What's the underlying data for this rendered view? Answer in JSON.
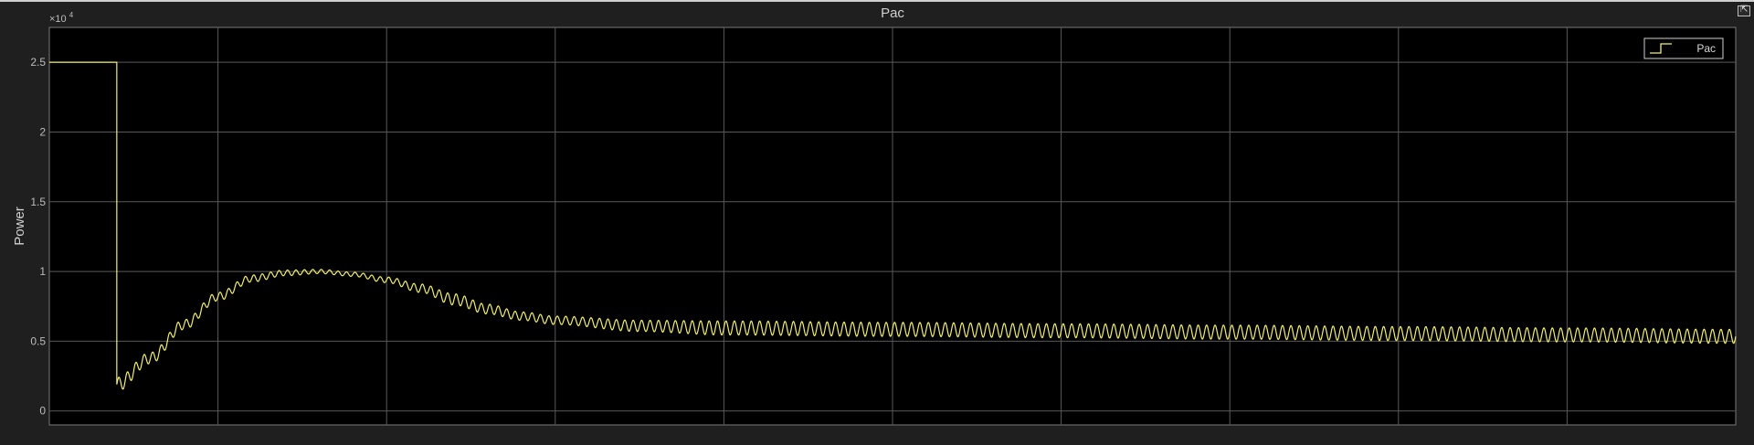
{
  "chart_data": {
    "type": "line",
    "title": "Pac",
    "xlabel": "",
    "ylabel": "Power",
    "y_exponent_label": "×10",
    "y_exponent_power": "4",
    "xlim": [
      0,
      10
    ],
    "ylim": [
      -0.1,
      2.75
    ],
    "y_ticks": [
      0,
      0.5,
      1,
      1.5,
      2,
      2.5
    ],
    "y_tick_labels": [
      "0",
      "0.5",
      "1",
      "1.5",
      "2",
      "2.5"
    ],
    "x_ticks": [
      0,
      1,
      2,
      3,
      4,
      5,
      6,
      7,
      8,
      9,
      10
    ],
    "grid": true,
    "legend_placement": "top-right",
    "series": [
      {
        "name": "Pac",
        "color": "#f2ef6e",
        "step_value": 2.5,
        "step_until": 0.4,
        "drop_to": 0.19,
        "x": [
          0.4,
          0.6,
          0.8,
          1.0,
          1.2,
          1.4,
          1.6,
          1.8,
          2.0,
          2.2,
          2.4,
          2.6,
          2.8,
          3.0,
          3.5,
          4,
          5,
          6,
          7,
          8,
          9,
          10
        ],
        "y": [
          0.19,
          0.38,
          0.62,
          0.82,
          0.95,
          0.99,
          1.0,
          0.98,
          0.94,
          0.88,
          0.8,
          0.73,
          0.68,
          0.65,
          0.61,
          0.595,
          0.585,
          0.575,
          0.565,
          0.555,
          0.545,
          0.535
        ],
        "ripple_amplitude": [
          0.05,
          0.04,
          0.035,
          0.03,
          0.025,
          0.02,
          0.015,
          0.015,
          0.02,
          0.03,
          0.04,
          0.035,
          0.03,
          0.03,
          0.04,
          0.05,
          0.05,
          0.05,
          0.05,
          0.05,
          0.05,
          0.05
        ],
        "ripple_cycles_per_unit": 20
      }
    ]
  },
  "window": {
    "restore_icon": "restore-icon",
    "restore_glyph": "⇱"
  }
}
